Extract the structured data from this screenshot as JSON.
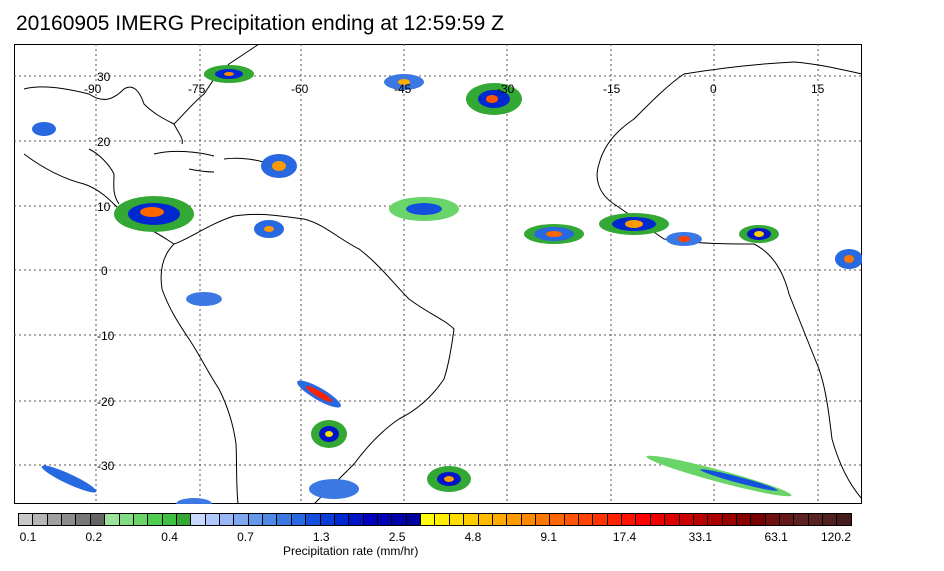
{
  "title": "20160905 IMERG Precipitation ending at 12:59:59 Z",
  "map": {
    "lat_labels": [
      "30",
      "20",
      "10",
      "0",
      "-10",
      "-20",
      "-30"
    ],
    "lon_labels": [
      "-90",
      "-75",
      "-60",
      "-45",
      "-30",
      "-15",
      "0",
      "15"
    ]
  },
  "colorbar": {
    "colors": [
      "#c8c8c8",
      "#b4b4b4",
      "#a0a0a0",
      "#8c8c8c",
      "#787878",
      "#646464",
      "#9be39b",
      "#82dc82",
      "#69d569",
      "#50cd50",
      "#3fc03f",
      "#34a834",
      "#c8d8ff",
      "#b0c8fa",
      "#98b8f5",
      "#80a8f0",
      "#6898ec",
      "#5088e8",
      "#3c78e4",
      "#2868e0",
      "#1450dc",
      "#0a3cd6",
      "#0028d0",
      "#0014c8",
      "#0000c0",
      "#0000b4",
      "#0000a8",
      "#00009c",
      "#ffff00",
      "#ffee00",
      "#ffdd00",
      "#ffcc00",
      "#ffbb00",
      "#ffaa00",
      "#ff9900",
      "#ff8800",
      "#ff7700",
      "#ff6600",
      "#ff5500",
      "#ff4400",
      "#ff3300",
      "#ff2200",
      "#ff1100",
      "#ff0000",
      "#ee0000",
      "#dd0000",
      "#cc0000",
      "#bb0000",
      "#aa0000",
      "#990000",
      "#880000",
      "#770000",
      "#6e1010",
      "#661818",
      "#5e2020",
      "#562222",
      "#4e2020",
      "#461c1c"
    ],
    "ticks": [
      "0.1",
      "0.2",
      "0.4",
      "0.7",
      "1.3",
      "2.5",
      "4.8",
      "9.1",
      "17.4",
      "33.1",
      "63.1",
      "120.2"
    ],
    "label": "Precipitation rate (mm/hr)"
  }
}
